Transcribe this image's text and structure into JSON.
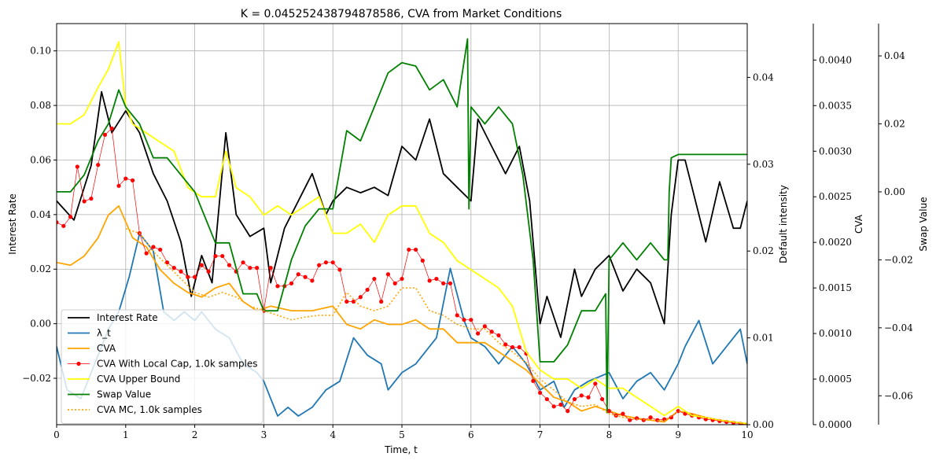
{
  "chart_data": {
    "type": "line",
    "title": "K = 0.045252438794878586, CVA from Market Conditions",
    "xlabel": "Time, t",
    "xlim": [
      0,
      10
    ],
    "x_ticks": [
      "0",
      "1",
      "2",
      "3",
      "4",
      "5",
      "6",
      "7",
      "8",
      "9",
      "10"
    ],
    "grid": true,
    "legend_position": "lower-left",
    "axes": {
      "left": {
        "label": "Interest Rate",
        "lim": [
          -0.037,
          0.11
        ],
        "ticks": [
          {
            "value": 0.1,
            "label": "0.10"
          },
          {
            "value": 0.08,
            "label": "0.08"
          },
          {
            "value": 0.06,
            "label": "0.06"
          },
          {
            "value": 0.04,
            "label": "0.04"
          },
          {
            "value": 0.02,
            "label": "0.02"
          },
          {
            "value": 0.0,
            "label": "0.00"
          },
          {
            "value": -0.02,
            "label": "−0.02"
          }
        ]
      },
      "right1": {
        "label": "Default intensity",
        "lim": [
          0,
          0.0462
        ],
        "ticks": [
          {
            "value": 0.04,
            "label": "0.04"
          },
          {
            "value": 0.03,
            "label": "0.03"
          },
          {
            "value": 0.02,
            "label": "0.02"
          },
          {
            "value": 0.01,
            "label": "0.01"
          },
          {
            "value": 0.0,
            "label": "0.00"
          }
        ]
      },
      "right2": {
        "label": "CVA",
        "lim": [
          0,
          0.0044
        ],
        "ticks": [
          {
            "value": 0.004,
            "label": "0.0040"
          },
          {
            "value": 0.0035,
            "label": "0.0035"
          },
          {
            "value": 0.003,
            "label": "0.0030"
          },
          {
            "value": 0.0025,
            "label": "0.0025"
          },
          {
            "value": 0.002,
            "label": "0.0020"
          },
          {
            "value": 0.0015,
            "label": "0.0015"
          },
          {
            "value": 0.001,
            "label": "0.0010"
          },
          {
            "value": 0.0005,
            "label": "0.0005"
          },
          {
            "value": 0.0,
            "label": "0.0000"
          }
        ]
      },
      "right3": {
        "label": "Swap Value",
        "lim": [
          -0.0685,
          0.0495
        ],
        "ticks": [
          {
            "value": 0.04,
            "label": "0.04"
          },
          {
            "value": 0.02,
            "label": "0.02"
          },
          {
            "value": 0.0,
            "label": "0.00"
          },
          {
            "value": -0.02,
            "label": "−0.02"
          },
          {
            "value": -0.04,
            "label": "−0.04"
          },
          {
            "value": -0.06,
            "label": "−0.06"
          }
        ]
      }
    },
    "series": [
      {
        "name": "Interest Rate",
        "axis": "left",
        "color": "#000000",
        "style": "solid",
        "x": [
          0,
          0.25,
          0.5,
          0.65,
          0.8,
          1.0,
          1.2,
          1.4,
          1.6,
          1.8,
          1.95,
          2.1,
          2.25,
          2.45,
          2.6,
          2.8,
          3.0,
          3.1,
          3.3,
          3.5,
          3.7,
          3.9,
          4.0,
          4.2,
          4.4,
          4.6,
          4.8,
          5.0,
          5.2,
          5.4,
          5.6,
          5.8,
          6.0,
          6.1,
          6.3,
          6.5,
          6.7,
          6.85,
          7.0,
          7.1,
          7.3,
          7.5,
          7.6,
          7.8,
          8.0,
          8.2,
          8.4,
          8.6,
          8.8,
          8.9,
          9.0,
          9.1,
          9.2,
          9.4,
          9.6,
          9.8,
          9.9,
          10.0
        ],
        "values": [
          0.045,
          0.038,
          0.058,
          0.085,
          0.07,
          0.078,
          0.07,
          0.055,
          0.045,
          0.03,
          0.01,
          0.025,
          0.015,
          0.07,
          0.04,
          0.032,
          0.035,
          0.015,
          0.035,
          0.045,
          0.055,
          0.04,
          0.045,
          0.05,
          0.048,
          0.05,
          0.047,
          0.065,
          0.06,
          0.075,
          0.055,
          0.05,
          0.045,
          0.075,
          0.065,
          0.055,
          0.065,
          0.045,
          0.0,
          0.01,
          -0.005,
          0.02,
          0.01,
          0.02,
          0.025,
          0.012,
          0.02,
          0.015,
          0.0,
          0.04,
          0.06,
          0.06,
          0.05,
          0.03,
          0.052,
          0.035,
          0.035,
          0.045
        ]
      },
      {
        "name": "λ_t",
        "axis": "right1",
        "color": "#1f77b4",
        "style": "solid",
        "x": [
          0,
          0.15,
          0.35,
          0.55,
          0.75,
          0.9,
          1.05,
          1.2,
          1.4,
          1.55,
          1.7,
          1.85,
          2.0,
          2.1,
          2.3,
          2.5,
          2.7,
          2.9,
          3.0,
          3.2,
          3.35,
          3.5,
          3.7,
          3.9,
          4.1,
          4.3,
          4.5,
          4.7,
          4.8,
          5.0,
          5.2,
          5.5,
          5.7,
          5.9,
          6.0,
          6.2,
          6.4,
          6.6,
          6.8,
          7.0,
          7.2,
          7.35,
          7.5,
          7.7,
          8.0,
          8.2,
          8.4,
          8.6,
          8.8,
          9.0,
          9.1,
          9.3,
          9.5,
          9.7,
          9.9,
          10.0
        ],
        "values": [
          0.009,
          0.004,
          0.003,
          0.007,
          0.011,
          0.013,
          0.017,
          0.022,
          0.02,
          0.013,
          0.012,
          0.013,
          0.012,
          0.013,
          0.011,
          0.01,
          0.007,
          0.006,
          0.005,
          0.001,
          0.002,
          0.001,
          0.002,
          0.004,
          0.005,
          0.01,
          0.008,
          0.007,
          0.004,
          0.006,
          0.007,
          0.01,
          0.018,
          0.012,
          0.01,
          0.009,
          0.007,
          0.009,
          0.007,
          0.004,
          0.005,
          0.002,
          0.004,
          0.005,
          0.006,
          0.003,
          0.005,
          0.006,
          0.004,
          0.007,
          0.009,
          0.012,
          0.007,
          0.009,
          0.011,
          0.007
        ]
      },
      {
        "name": "CVA",
        "axis": "right2",
        "color": "#ffa500",
        "style": "solid",
        "x": [
          0,
          0.2,
          0.4,
          0.6,
          0.75,
          0.9,
          1.1,
          1.3,
          1.5,
          1.7,
          1.9,
          2.1,
          2.3,
          2.5,
          2.7,
          2.9,
          3.1,
          3.4,
          3.7,
          4.0,
          4.2,
          4.4,
          4.6,
          4.8,
          5.0,
          5.2,
          5.4,
          5.6,
          5.8,
          6.0,
          6.2,
          6.4,
          6.6,
          6.8,
          7.0,
          7.2,
          7.4,
          7.6,
          7.8,
          8.0,
          8.2,
          8.4,
          8.6,
          8.8,
          9.0,
          9.2,
          9.4,
          9.6,
          9.8,
          10.0
        ],
        "values": [
          0.00178,
          0.00175,
          0.00185,
          0.00205,
          0.0023,
          0.0024,
          0.00205,
          0.00195,
          0.0017,
          0.00155,
          0.00145,
          0.0014,
          0.0015,
          0.00155,
          0.00135,
          0.00125,
          0.0013,
          0.00125,
          0.00125,
          0.0013,
          0.0011,
          0.00105,
          0.00115,
          0.0011,
          0.0011,
          0.00115,
          0.00105,
          0.00105,
          0.0009,
          0.0009,
          0.0009,
          0.0008,
          0.0007,
          0.0006,
          0.00045,
          0.0003,
          0.00025,
          0.00015,
          0.0002,
          0.00015,
          0.0001,
          7e-05,
          5e-05,
          3e-05,
          0.00015,
          0.00012,
          8e-05,
          5e-05,
          3e-05,
          1e-05
        ]
      },
      {
        "name": "CVA With Local Cap, 1.0k samples",
        "axis": "right2",
        "color": "#ff0000",
        "style": "dots",
        "x": [
          0,
          0.1,
          0.2,
          0.3,
          0.4,
          0.5,
          0.6,
          0.7,
          0.8,
          0.9,
          1.0,
          1.1,
          1.2,
          1.3,
          1.4,
          1.5,
          1.6,
          1.7,
          1.8,
          1.9,
          2.0,
          2.1,
          2.2,
          2.3,
          2.4,
          2.5,
          2.6,
          2.7,
          2.8,
          2.9,
          3.0,
          3.1,
          3.2,
          3.3,
          3.4,
          3.5,
          3.6,
          3.7,
          3.8,
          3.9,
          4.0,
          4.1,
          4.2,
          4.3,
          4.4,
          4.5,
          4.6,
          4.7,
          4.8,
          4.9,
          5.0,
          5.1,
          5.2,
          5.3,
          5.4,
          5.5,
          5.6,
          5.7,
          5.8,
          5.9,
          6.0,
          6.1,
          6.2,
          6.3,
          6.4,
          6.5,
          6.6,
          6.7,
          6.8,
          6.9,
          7.0,
          7.1,
          7.2,
          7.3,
          7.4,
          7.5,
          7.6,
          7.7,
          7.8,
          7.9,
          8.0,
          8.1,
          8.2,
          8.3,
          8.4,
          8.5,
          8.6,
          8.7,
          8.8,
          8.9,
          9.0,
          9.1,
          9.2,
          9.3,
          9.4,
          9.5,
          9.6,
          9.7,
          9.8,
          9.9,
          10.0
        ],
        "values": [
          0.00222,
          0.00218,
          0.00228,
          0.00283,
          0.00245,
          0.00248,
          0.00285,
          0.00318,
          0.00325,
          0.00262,
          0.0027,
          0.00268,
          0.0021,
          0.00188,
          0.00195,
          0.00192,
          0.00178,
          0.00172,
          0.00168,
          0.00162,
          0.00162,
          0.00175,
          0.00168,
          0.00185,
          0.00185,
          0.00175,
          0.00168,
          0.00178,
          0.00172,
          0.00172,
          0.00125,
          0.00172,
          0.00152,
          0.00152,
          0.00155,
          0.00165,
          0.00162,
          0.00158,
          0.00175,
          0.00178,
          0.00178,
          0.0017,
          0.00135,
          0.00135,
          0.0014,
          0.00148,
          0.0016,
          0.00135,
          0.00165,
          0.00155,
          0.0016,
          0.00192,
          0.00192,
          0.0018,
          0.00158,
          0.0016,
          0.00155,
          0.00155,
          0.0012,
          0.00115,
          0.00115,
          0.001,
          0.00108,
          0.00102,
          0.00098,
          0.00088,
          0.00085,
          0.00085,
          0.00078,
          0.00048,
          0.00035,
          0.00028,
          0.0002,
          0.00022,
          0.00015,
          0.00028,
          0.00032,
          0.0003,
          0.00045,
          0.00028,
          0.00015,
          0.0001,
          0.00012,
          5e-05,
          7e-05,
          5e-05,
          8e-05,
          5e-05,
          6e-05,
          8e-05,
          0.00015,
          0.00012,
          0.0001,
          8e-05,
          6e-05,
          5e-05,
          4e-05,
          3e-05,
          2e-05,
          1e-05,
          0.0
        ]
      },
      {
        "name": "CVA Upper Bound",
        "axis": "right2",
        "color": "#ffff00",
        "style": "solid",
        "x": [
          0,
          0.2,
          0.4,
          0.6,
          0.75,
          0.9,
          1.0,
          1.1,
          1.3,
          1.5,
          1.7,
          1.9,
          2.1,
          2.3,
          2.45,
          2.6,
          2.8,
          3.0,
          3.2,
          3.4,
          3.6,
          3.8,
          4.0,
          4.2,
          4.4,
          4.6,
          4.8,
          5.0,
          5.2,
          5.4,
          5.6,
          5.8,
          6.0,
          6.2,
          6.4,
          6.6,
          6.8,
          7.0,
          7.2,
          7.4,
          7.6,
          7.8,
          8.0,
          8.2,
          8.4,
          8.6,
          8.8,
          9.0,
          9.2,
          9.4,
          9.6,
          9.8,
          10.0
        ],
        "values": [
          0.0033,
          0.0033,
          0.0034,
          0.0037,
          0.0039,
          0.0042,
          0.0035,
          0.0033,
          0.0032,
          0.0031,
          0.003,
          0.0026,
          0.0025,
          0.0025,
          0.003,
          0.0026,
          0.0025,
          0.0023,
          0.0024,
          0.0023,
          0.0024,
          0.0025,
          0.0021,
          0.0021,
          0.0022,
          0.002,
          0.0023,
          0.0024,
          0.0024,
          0.0021,
          0.002,
          0.0018,
          0.0017,
          0.0016,
          0.0015,
          0.0013,
          0.0008,
          0.0006,
          0.0005,
          0.0005,
          0.0004,
          0.0005,
          0.0004,
          0.0004,
          0.0003,
          0.0002,
          0.0001,
          0.0002,
          0.0001,
          8e-05,
          5e-05,
          3e-05,
          1e-05
        ]
      },
      {
        "name": "Swap Value",
        "axis": "right3",
        "color": "#008000",
        "style": "solid",
        "x": [
          0,
          0.2,
          0.4,
          0.6,
          0.75,
          0.9,
          1.0,
          1.2,
          1.4,
          1.6,
          1.8,
          2.0,
          2.1,
          2.3,
          2.5,
          2.7,
          2.9,
          3.0,
          3.2,
          3.4,
          3.6,
          3.8,
          4.0,
          4.2,
          4.4,
          4.6,
          4.8,
          5.0,
          5.2,
          5.4,
          5.6,
          5.8,
          5.95,
          5.97,
          6.0,
          6.2,
          6.4,
          6.6,
          6.75,
          6.9,
          7.0,
          7.2,
          7.4,
          7.6,
          7.8,
          7.95,
          7.97,
          8.0,
          8.2,
          8.4,
          8.6,
          8.8,
          8.85,
          8.87,
          8.9,
          9.0,
          9.2,
          9.4,
          9.6,
          9.8,
          10.0
        ],
        "values": [
          0.0,
          0.0,
          0.005,
          0.015,
          0.02,
          0.03,
          0.025,
          0.02,
          0.01,
          0.01,
          0.005,
          0.0,
          -0.005,
          -0.015,
          -0.015,
          -0.03,
          -0.03,
          -0.035,
          -0.035,
          -0.02,
          -0.01,
          -0.005,
          -0.005,
          0.018,
          0.015,
          0.025,
          0.035,
          0.038,
          0.037,
          0.03,
          0.033,
          0.025,
          0.045,
          -0.005,
          0.025,
          0.02,
          0.025,
          0.02,
          0.005,
          -0.02,
          -0.05,
          -0.05,
          -0.045,
          -0.035,
          -0.035,
          -0.03,
          -0.065,
          -0.02,
          -0.015,
          -0.02,
          -0.015,
          -0.02,
          -0.02,
          0.0,
          0.01,
          0.011,
          0.011,
          0.011,
          0.011,
          0.011,
          0.011
        ]
      },
      {
        "name": "CVA MC, 1.0k samples",
        "axis": "right2",
        "color": "#ffa500",
        "style": "dotted",
        "x": [
          1.0,
          1.2,
          1.4,
          1.6,
          1.8,
          2.0,
          2.2,
          2.4,
          2.6,
          2.8,
          3.0,
          3.2,
          3.4,
          3.6,
          3.8,
          4.0,
          4.2,
          4.4,
          4.6,
          4.8,
          5.0,
          5.2,
          5.4,
          5.6,
          5.8,
          6.0,
          6.2,
          6.4,
          6.6,
          6.8,
          7.0,
          7.2,
          7.4,
          7.6,
          7.8,
          8.0,
          8.2,
          8.4,
          8.6,
          8.8,
          9.0,
          9.2,
          9.4,
          9.6,
          9.8,
          10.0
        ],
        "values": [
          0.00215,
          0.0021,
          0.0019,
          0.00175,
          0.0016,
          0.00145,
          0.0014,
          0.00145,
          0.0014,
          0.0013,
          0.00125,
          0.0012,
          0.00115,
          0.00118,
          0.0012,
          0.0012,
          0.00145,
          0.0013,
          0.00125,
          0.0013,
          0.0015,
          0.0015,
          0.00125,
          0.0012,
          0.0011,
          0.00105,
          0.00105,
          0.0009,
          0.0008,
          0.00068,
          0.0005,
          0.00038,
          0.00025,
          0.0002,
          0.00022,
          0.00012,
          8e-05,
          6e-05,
          5e-05,
          4e-05,
          0.00015,
          0.00012,
          8e-05,
          5e-05,
          3e-05,
          1e-05
        ]
      }
    ]
  }
}
